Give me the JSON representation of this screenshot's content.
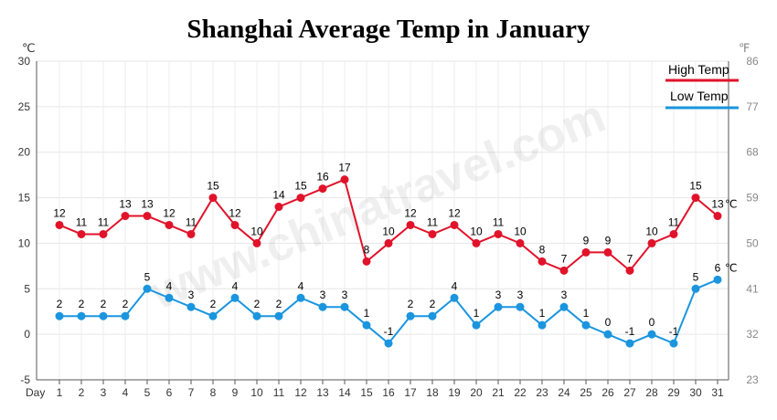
{
  "chart_data": {
    "type": "line",
    "title": "Shanghai Average Temp in January",
    "left_unit": "℃",
    "right_unit": "℉",
    "x_axis_label": "Day",
    "categories": [
      "1",
      "2",
      "3",
      "4",
      "5",
      "6",
      "7",
      "8",
      "9",
      "10",
      "11",
      "12",
      "13",
      "14",
      "15",
      "16",
      "17",
      "18",
      "19",
      "20",
      "21",
      "22",
      "23",
      "24",
      "25",
      "26",
      "27",
      "28",
      "29",
      "30",
      "31"
    ],
    "ylim": [
      -5,
      30
    ],
    "yticks": [
      -5,
      0,
      5,
      10,
      15,
      20,
      25,
      30
    ],
    "right_ticks": [
      23,
      32,
      41,
      50,
      59,
      68,
      77,
      86
    ],
    "grid": true,
    "legend_position": "top-right",
    "series": [
      {
        "name": "High Temp",
        "color": "#e0132a",
        "values": [
          12,
          11,
          11,
          13,
          13,
          12,
          11,
          15,
          12,
          10,
          14,
          15,
          16,
          17,
          8,
          10,
          12,
          11,
          12,
          10,
          11,
          10,
          8,
          7,
          9,
          9,
          7,
          10,
          11,
          15,
          13
        ],
        "end_unit": "℃"
      },
      {
        "name": "Low Temp",
        "color": "#1a95de",
        "values": [
          2,
          2,
          2,
          2,
          5,
          4,
          3,
          2,
          4,
          2,
          2,
          4,
          3,
          3,
          1,
          -1,
          2,
          2,
          4,
          1,
          3,
          3,
          1,
          3,
          1,
          0,
          -1,
          0,
          -1,
          5,
          6
        ],
        "end_unit": "℃"
      }
    ],
    "watermark": "www.chinatravel.com"
  }
}
